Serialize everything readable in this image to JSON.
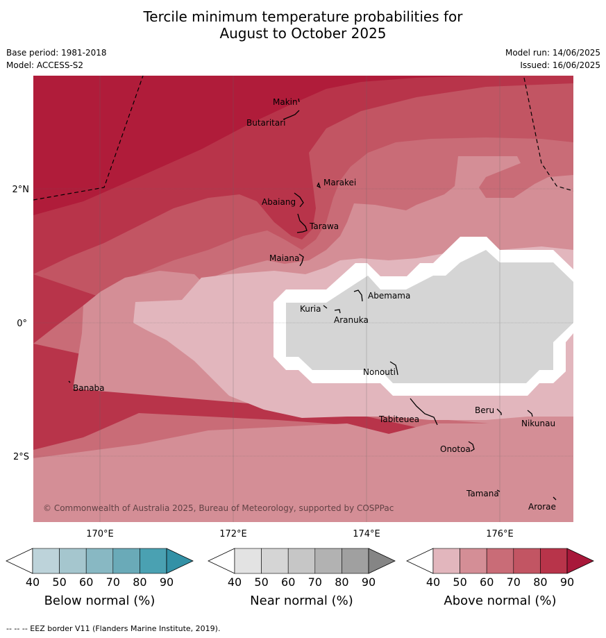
{
  "title_line1": "Tercile minimum temperature probabilities for",
  "title_line2": "August to October 2025",
  "base_period": "Base period: 1981-2018",
  "model": "Model: ACCESS-S2",
  "model_run": "Model run: 14/06/2025",
  "issued": "Issued: 16/06/2025",
  "copyright": "© Commonwealth of Australia 2025, Bureau of Meteorology, supported by COSPPac",
  "footer": "--  --  -- EEZ border V11 (Flanders Marine Institute, 2019).",
  "axes": {
    "lon_ticks": [
      "170°E",
      "172°E",
      "174°E",
      "176°E"
    ],
    "lat_ticks": [
      "2°N",
      "0°",
      "2°S"
    ]
  },
  "places": [
    "Makin",
    "Butaritari",
    "Marakei",
    "Abaiang",
    "Tarawa",
    "Maiana",
    "Abemama",
    "Kuria",
    "Aranuka",
    "Nonouti",
    "Banaba",
    "Beru",
    "Tabiteuea",
    "Nikunau",
    "Onotoa",
    "Tamana",
    "Arorae"
  ],
  "colorbars": [
    {
      "label": "Below normal (%)",
      "ticks": [
        "40",
        "50",
        "60",
        "70",
        "80",
        "90"
      ],
      "colors": [
        "#bdd3da",
        "#a5c6ce",
        "#88b8c3",
        "#6aaab8",
        "#4aa1b2",
        "#3391a6"
      ]
    },
    {
      "label": "Near normal (%)",
      "ticks": [
        "40",
        "50",
        "60",
        "70",
        "80",
        "90"
      ],
      "colors": [
        "#e3e3e3",
        "#d5d5d5",
        "#c6c6c6",
        "#b2b2b2",
        "#a0a0a0",
        "#858585"
      ]
    },
    {
      "label": "Above normal (%)",
      "ticks": [
        "40",
        "50",
        "60",
        "70",
        "80",
        "90"
      ],
      "colors": [
        "#e2b6bd",
        "#d48e96",
        "#c96c77",
        "#c25563",
        "#b8344a",
        "#a8183a"
      ]
    }
  ]
}
